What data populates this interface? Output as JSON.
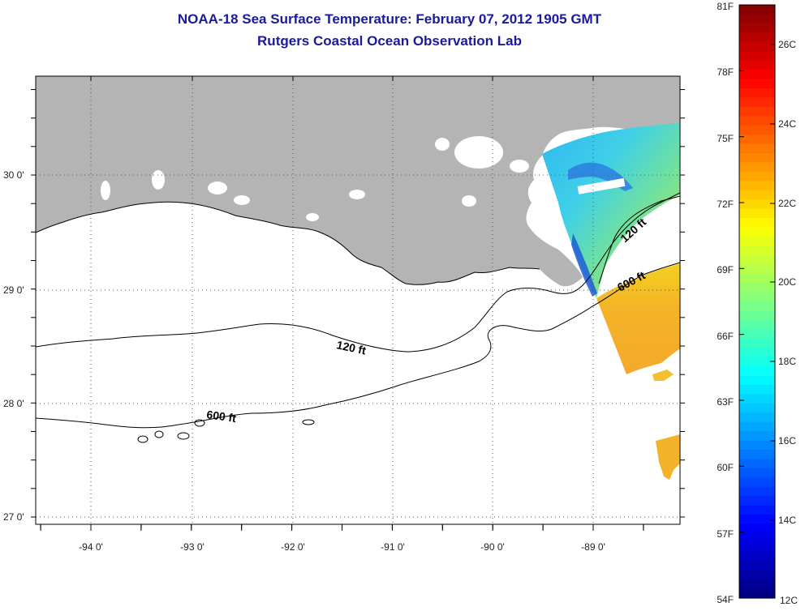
{
  "header": {
    "title": "NOAA-18 Sea Surface Temperature:  February 07, 2012 1905 GMT",
    "subtitle": "Rutgers Coastal Ocean Observation Lab"
  },
  "map": {
    "lon_ticks": [
      "-94 0'",
      "-93 0'",
      "-92 0'",
      "-91 0'",
      "-90 0'",
      "-89 0'"
    ],
    "lat_ticks": [
      "30 0'",
      "29 0'",
      "28 0'",
      "27 0'"
    ],
    "contour_labels": [
      "120 ft",
      "120 ft",
      "600 ft",
      "600 ft"
    ],
    "colors": {
      "land": "#b4b4b4",
      "water_no_data": "#ffffff",
      "grid": "#555555"
    }
  },
  "colorbar": {
    "fahrenheit_labels": [
      "81F",
      "78F",
      "75F",
      "72F",
      "69F",
      "66F",
      "63F",
      "60F",
      "57F",
      "54F"
    ],
    "celsius_labels": [
      "26C",
      "24C",
      "22C",
      "20C",
      "18C",
      "16C",
      "14C",
      "12C"
    ],
    "range_f": [
      54,
      81
    ],
    "colormap": "jet"
  }
}
